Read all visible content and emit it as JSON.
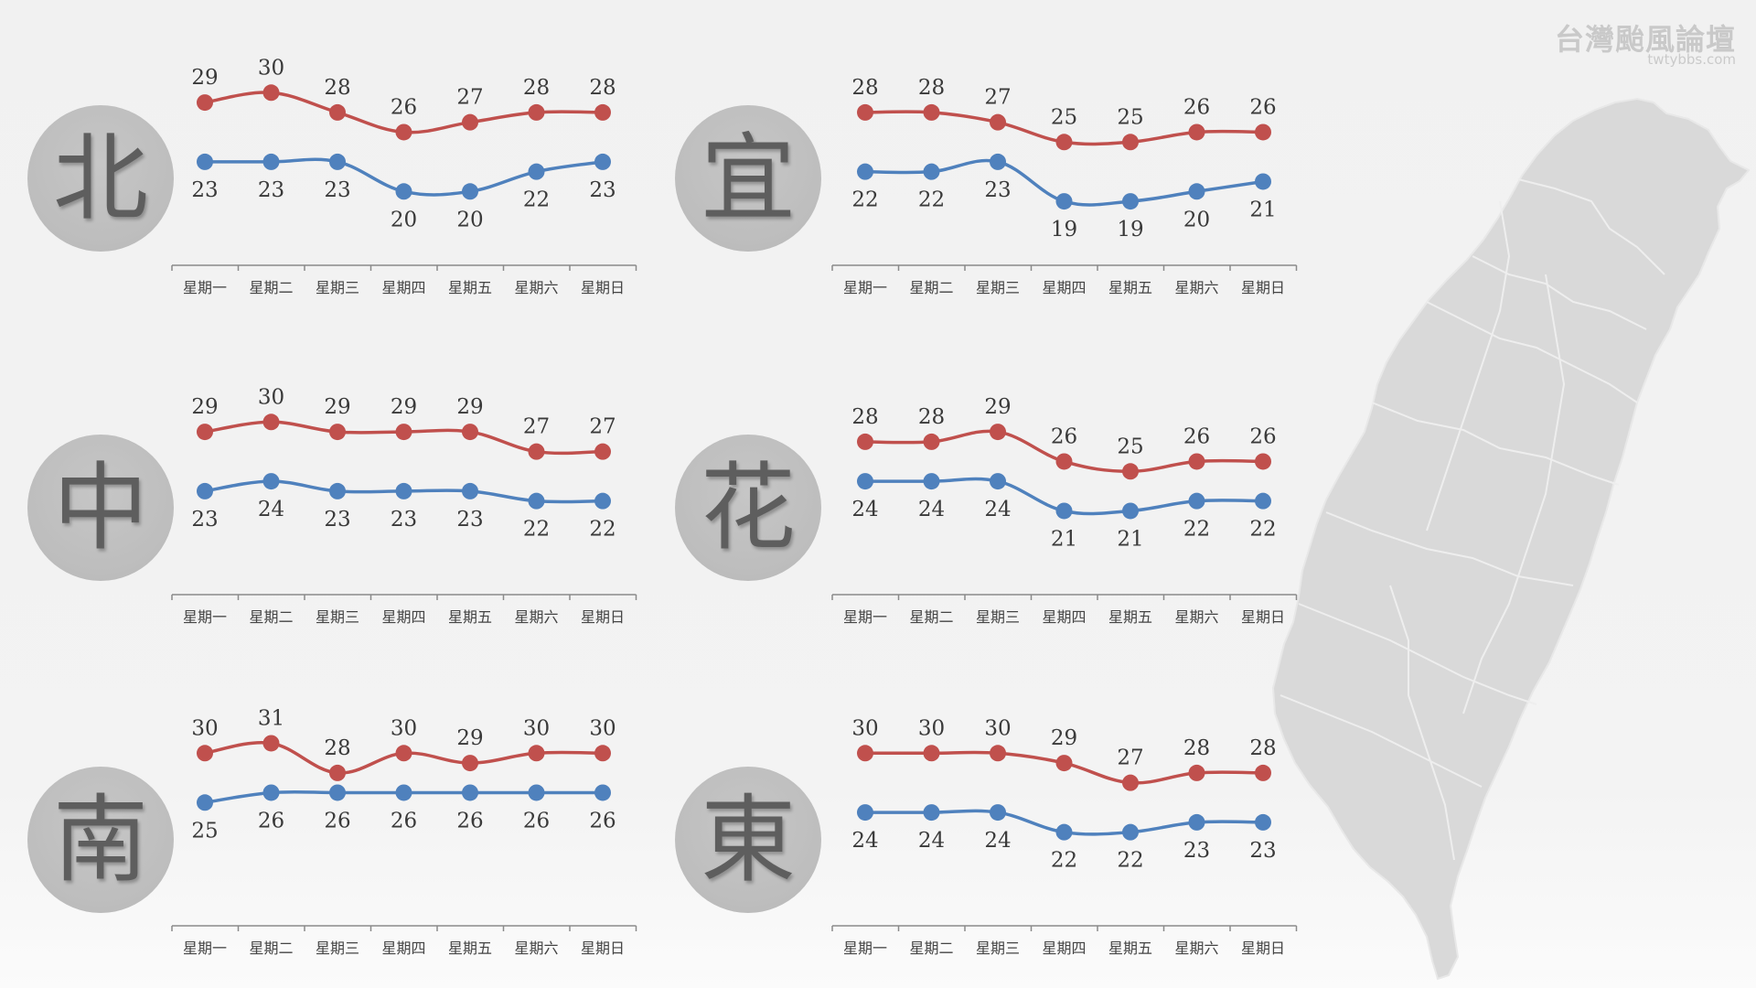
{
  "brand": {
    "title": "台灣颱風論壇",
    "url": "twtybbs.com"
  },
  "colors": {
    "high": "#c0504d",
    "low": "#4f81bd",
    "axis": "#8a8a8a",
    "map": "#d9d9d9"
  },
  "chart_data": [
    {
      "type": "line",
      "region": "北",
      "categories": [
        "星期一",
        "星期二",
        "星期三",
        "星期四",
        "星期五",
        "星期六",
        "星期日"
      ],
      "series": [
        {
          "values": [
            29,
            30,
            28,
            26,
            27,
            28,
            28
          ]
        },
        {
          "values": [
            23,
            23,
            23,
            20,
            20,
            22,
            23
          ]
        }
      ],
      "ylim": [
        15,
        33
      ]
    },
    {
      "type": "line",
      "region": "宜",
      "categories": [
        "星期一",
        "星期二",
        "星期三",
        "星期四",
        "星期五",
        "星期六",
        "星期日"
      ],
      "series": [
        {
          "values": [
            28,
            28,
            27,
            25,
            25,
            26,
            26
          ]
        },
        {
          "values": [
            22,
            22,
            23,
            19,
            19,
            20,
            21
          ]
        }
      ],
      "ylim": [
        15,
        33
      ]
    },
    {
      "type": "line",
      "region": "中",
      "categories": [
        "星期一",
        "星期二",
        "星期三",
        "星期四",
        "星期五",
        "星期六",
        "星期日"
      ],
      "series": [
        {
          "values": [
            29,
            30,
            29,
            29,
            29,
            27,
            27
          ]
        },
        {
          "values": [
            23,
            24,
            23,
            23,
            23,
            22,
            22
          ]
        }
      ],
      "ylim": [
        15,
        33
      ]
    },
    {
      "type": "line",
      "region": "花",
      "categories": [
        "星期一",
        "星期二",
        "星期三",
        "星期四",
        "星期五",
        "星期六",
        "星期日"
      ],
      "series": [
        {
          "values": [
            28,
            28,
            29,
            26,
            25,
            26,
            26
          ]
        },
        {
          "values": [
            24,
            24,
            24,
            21,
            21,
            22,
            22
          ]
        }
      ],
      "ylim": [
        15,
        33
      ]
    },
    {
      "type": "line",
      "region": "南",
      "categories": [
        "星期一",
        "星期二",
        "星期三",
        "星期四",
        "星期五",
        "星期六",
        "星期日"
      ],
      "series": [
        {
          "values": [
            30,
            31,
            28,
            30,
            29,
            30,
            30
          ]
        },
        {
          "values": [
            25,
            26,
            26,
            26,
            26,
            26,
            26
          ]
        }
      ],
      "ylim": [
        15,
        33
      ]
    },
    {
      "type": "line",
      "region": "東",
      "categories": [
        "星期一",
        "星期二",
        "星期三",
        "星期四",
        "星期五",
        "星期六",
        "星期日"
      ],
      "series": [
        {
          "values": [
            30,
            30,
            30,
            29,
            27,
            28,
            28
          ]
        },
        {
          "values": [
            24,
            24,
            24,
            22,
            22,
            23,
            23
          ]
        }
      ],
      "ylim": [
        15,
        33
      ]
    }
  ]
}
